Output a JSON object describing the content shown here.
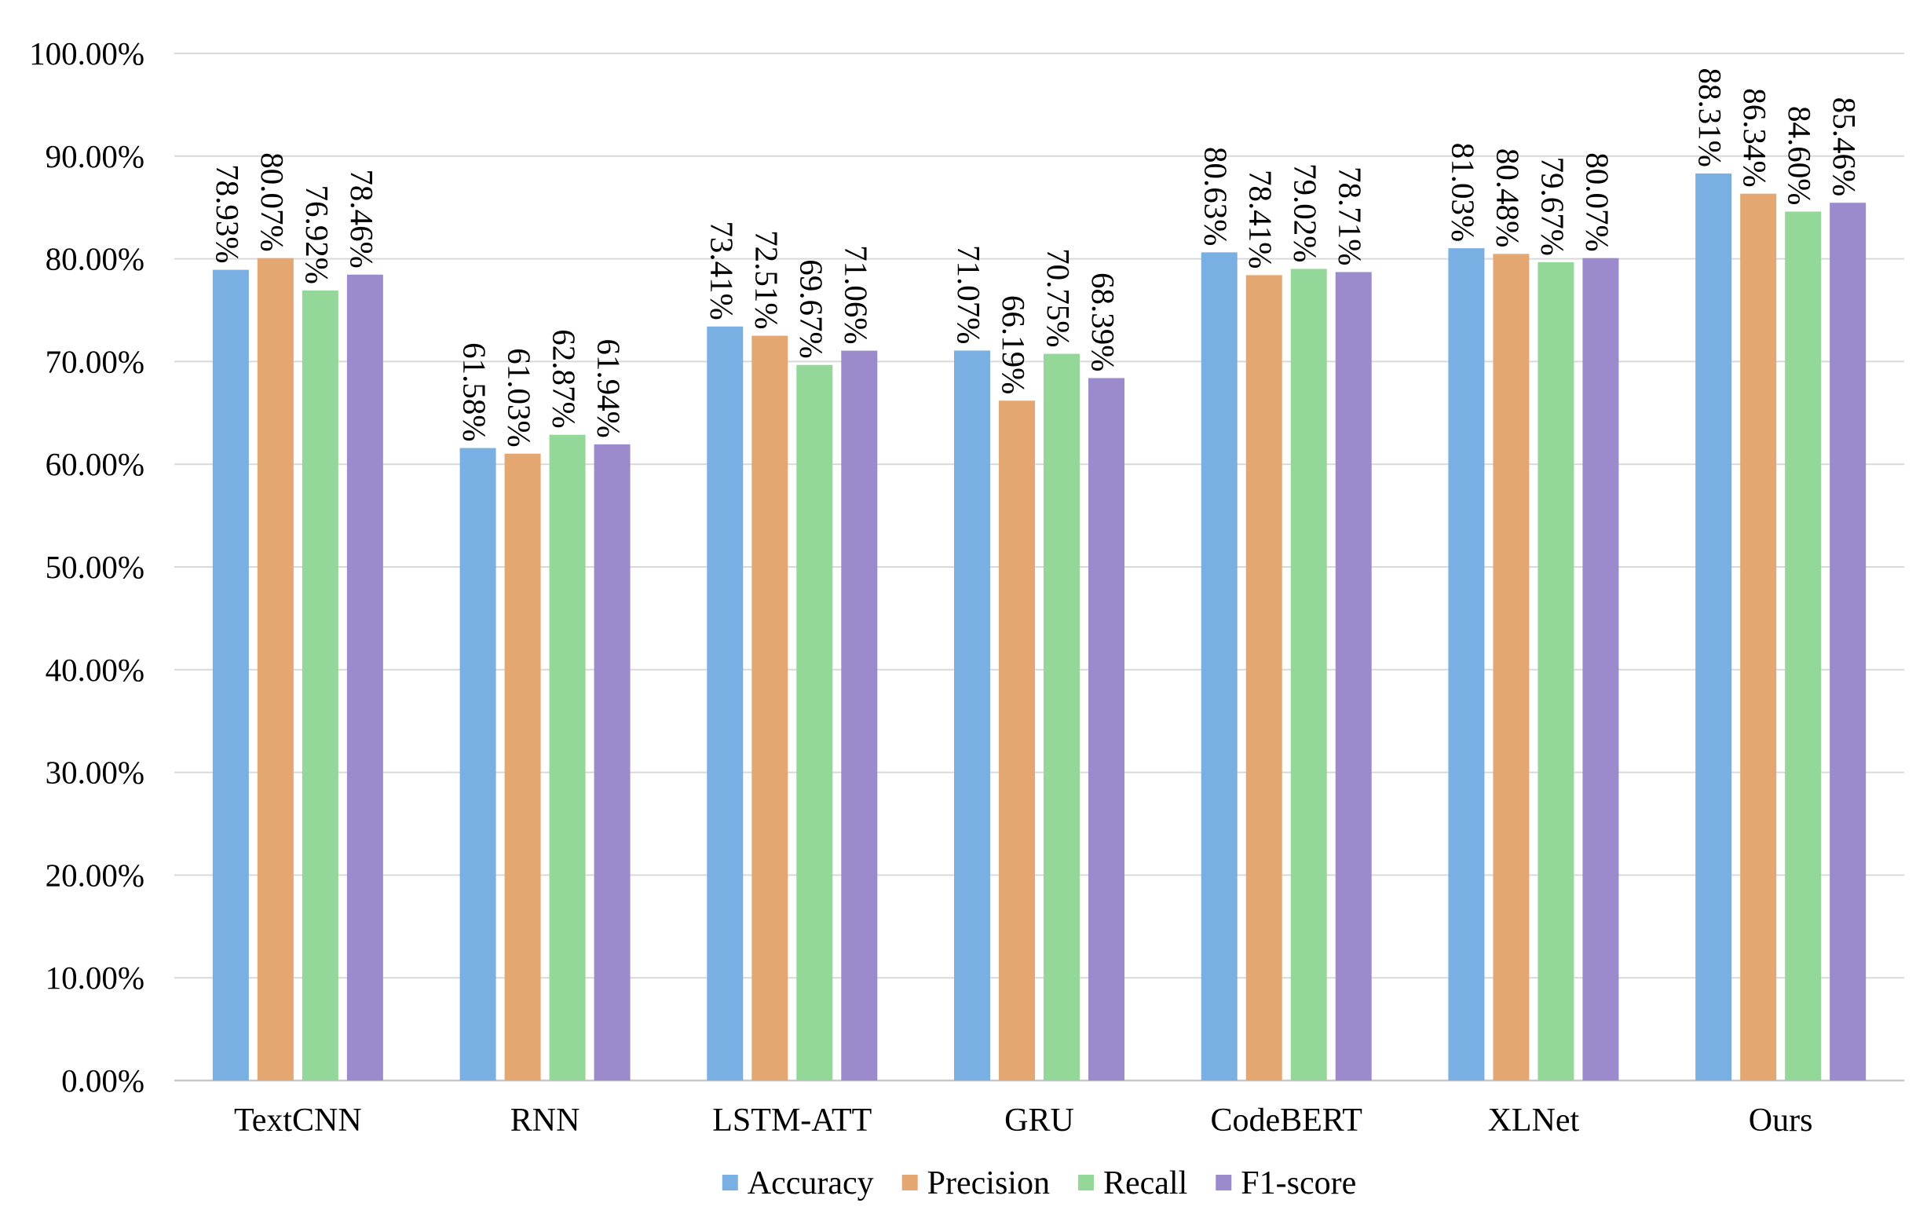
{
  "chart_data": {
    "type": "bar",
    "title": "",
    "xlabel": "",
    "ylabel": "",
    "ylim": [
      0,
      100
    ],
    "ytick_step": 10,
    "ytick_labels": [
      "0.00%",
      "10.00%",
      "20.00%",
      "30.00%",
      "40.00%",
      "50.00%",
      "60.00%",
      "70.00%",
      "80.00%",
      "90.00%",
      "100.00%"
    ],
    "grid": true,
    "legend_position": "bottom",
    "categories": [
      "TextCNN",
      "RNN",
      "LSTM-ATT",
      "GRU",
      "CodeBERT",
      "XLNet",
      "Ours"
    ],
    "series": [
      {
        "name": "Accuracy",
        "color": "#7aafe3",
        "values": [
          78.93,
          61.58,
          73.41,
          71.07,
          80.63,
          81.03,
          88.31
        ],
        "labels": [
          "78.93%",
          "61.58%",
          "73.41%",
          "71.07%",
          "80.63%",
          "81.03%",
          "88.31%"
        ]
      },
      {
        "name": "Precision",
        "color": "#e4a772",
        "values": [
          80.07,
          61.03,
          72.51,
          66.19,
          78.41,
          80.48,
          86.34
        ],
        "labels": [
          "80.07%",
          "61.03%",
          "72.51%",
          "66.19%",
          "78.41%",
          "80.48%",
          "86.34%"
        ]
      },
      {
        "name": "Recall",
        "color": "#93d898",
        "values": [
          76.92,
          62.87,
          69.67,
          70.75,
          79.02,
          79.67,
          84.6
        ],
        "labels": [
          "76.92%",
          "62.87%",
          "69.67%",
          "70.75%",
          "79.02%",
          "79.67%",
          "84.60%"
        ]
      },
      {
        "name": "F1-score",
        "color": "#9b8bcd",
        "values": [
          78.46,
          61.94,
          71.06,
          68.39,
          78.71,
          80.07,
          85.46
        ],
        "labels": [
          "78.46%",
          "61.94%",
          "71.06%",
          "68.39%",
          "78.71%",
          "80.07%",
          "85.46%"
        ]
      }
    ]
  }
}
